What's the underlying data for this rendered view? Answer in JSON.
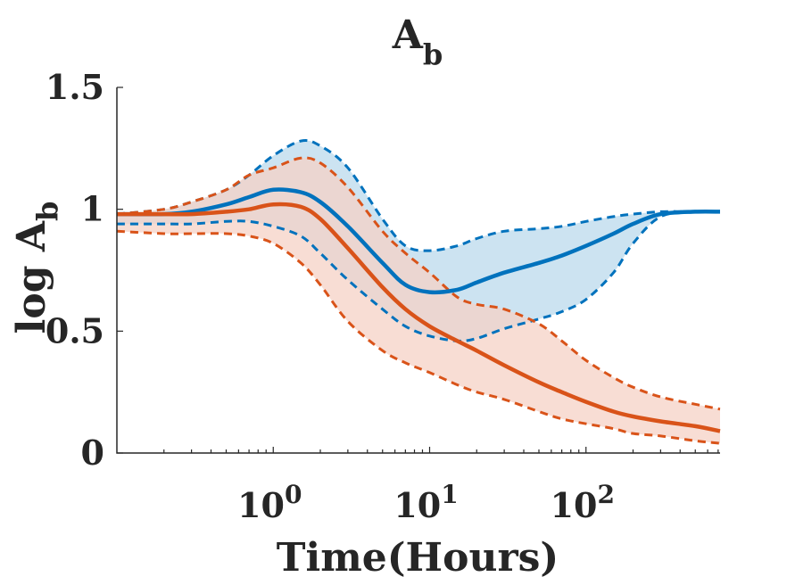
{
  "chart_data": {
    "type": "line",
    "title": "A",
    "title_subscript": "b",
    "xlabel": "Time(Hours)",
    "ylabel": "log A",
    "ylabel_subscript": "b",
    "xscale": "log",
    "xlim": [
      0.1,
      720
    ],
    "ylim": [
      0,
      1.5
    ],
    "xticks": [
      1,
      10,
      100
    ],
    "xtick_labels": [
      {
        "base": "10",
        "exp": "0"
      },
      {
        "base": "10",
        "exp": "1"
      },
      {
        "base": "10",
        "exp": "2"
      }
    ],
    "yticks": [
      0,
      0.5,
      1,
      1.5
    ],
    "ytick_labels": [
      "0",
      "0.5",
      "1",
      "1.5"
    ],
    "grid": false,
    "legend": "none",
    "x": [
      0.1,
      0.2,
      0.3,
      0.5,
      0.7,
      1,
      1.5,
      2,
      3,
      5,
      7,
      10,
      15,
      20,
      30,
      50,
      70,
      100,
      150,
      200,
      300,
      500,
      720
    ],
    "series": [
      {
        "color": "#0072BD",
        "band_color": "#c9e1f0",
        "mean": [
          0.98,
          0.98,
          0.99,
          1.02,
          1.05,
          1.08,
          1.07,
          1.03,
          0.93,
          0.78,
          0.69,
          0.66,
          0.67,
          0.7,
          0.74,
          0.78,
          0.81,
          0.85,
          0.9,
          0.94,
          0.98,
          0.99,
          0.99
        ],
        "upper": [
          0.98,
          1.0,
          1.03,
          1.08,
          1.14,
          1.22,
          1.28,
          1.26,
          1.17,
          0.96,
          0.85,
          0.83,
          0.85,
          0.88,
          0.91,
          0.92,
          0.93,
          0.95,
          0.97,
          0.98,
          0.99,
          0.99,
          0.99
        ],
        "lower": [
          0.94,
          0.94,
          0.94,
          0.95,
          0.95,
          0.93,
          0.89,
          0.82,
          0.71,
          0.59,
          0.52,
          0.48,
          0.46,
          0.47,
          0.51,
          0.55,
          0.58,
          0.63,
          0.74,
          0.86,
          0.97,
          0.99,
          0.99
        ]
      },
      {
        "color": "#D95319",
        "band_color": "#f6d2c6",
        "mean": [
          0.98,
          0.98,
          0.98,
          0.99,
          1.0,
          1.02,
          1.01,
          0.96,
          0.84,
          0.68,
          0.59,
          0.52,
          0.46,
          0.42,
          0.36,
          0.29,
          0.25,
          0.21,
          0.17,
          0.15,
          0.13,
          0.11,
          0.09
        ],
        "upper": [
          0.98,
          1.0,
          1.03,
          1.08,
          1.14,
          1.17,
          1.21,
          1.19,
          1.09,
          0.91,
          0.82,
          0.74,
          0.64,
          0.61,
          0.59,
          0.53,
          0.46,
          0.38,
          0.31,
          0.27,
          0.23,
          0.2,
          0.18
        ],
        "lower": [
          0.91,
          0.9,
          0.9,
          0.9,
          0.89,
          0.86,
          0.78,
          0.69,
          0.54,
          0.42,
          0.37,
          0.33,
          0.28,
          0.25,
          0.22,
          0.17,
          0.14,
          0.12,
          0.1,
          0.08,
          0.07,
          0.05,
          0.04
        ]
      }
    ]
  }
}
